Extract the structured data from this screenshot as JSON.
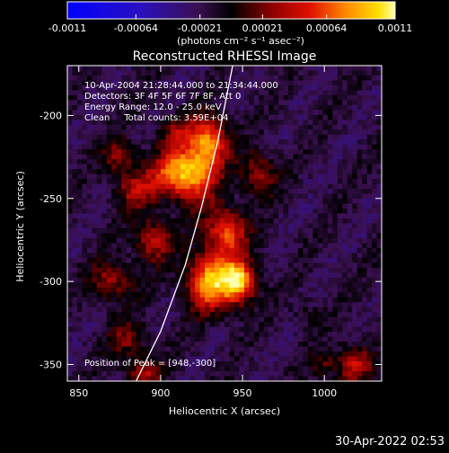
{
  "chart_data": {
    "type": "heatmap",
    "title": "Reconstructed RHESSI Image",
    "xlabel": "Heliocentric X (arcsec)",
    "ylabel": "Heliocentric Y (arcsec)",
    "x_range": [
      843,
      1035
    ],
    "y_range": [
      -360,
      -170
    ],
    "x_ticks": [
      850,
      900,
      950,
      1000
    ],
    "y_ticks": [
      -200,
      -250,
      -300,
      -350
    ],
    "colorbar": {
      "ticks": [
        "-0.0011",
        "-0.00064",
        "-0.00021",
        "0.00021",
        "0.00064",
        "0.0011"
      ],
      "tick_values": [
        -0.0011,
        -0.00064,
        -0.00021,
        0.00021,
        0.00064,
        0.0011
      ],
      "range": [
        -0.0011,
        0.0011
      ],
      "unit_label": "(photons cm⁻² s⁻¹ asec⁻²)"
    },
    "info_lines": [
      "10-Apr-2004 21:28:44.000 to 21:34:44.000",
      "Detectors: 3F 4F 5F 6F 7F 8F, Att 0",
      "Energy Range: 12.0 - 25.0 keV",
      "Clean     Total counts: 3.59E+04"
    ],
    "peak_label": "Position of Peak = [948,-300]",
    "peak": [
      948,
      -300
    ],
    "limb_points": [
      [
        885,
        -360
      ],
      [
        900,
        -330
      ],
      [
        915,
        -290
      ],
      [
        925,
        -255
      ],
      [
        935,
        -215
      ],
      [
        944,
        -170
      ]
    ],
    "sources": [
      {
        "x": 930,
        "y": -300,
        "amp": 0.00105,
        "sx": 10,
        "sy": 12
      },
      {
        "x": 948,
        "y": -300,
        "amp": 0.0011,
        "sx": 7,
        "sy": 9
      },
      {
        "x": 940,
        "y": -270,
        "amp": 0.0008,
        "sx": 9,
        "sy": 10
      },
      {
        "x": 920,
        "y": -235,
        "amp": 0.00095,
        "sx": 10,
        "sy": 12
      },
      {
        "x": 930,
        "y": -215,
        "amp": 0.0009,
        "sx": 8,
        "sy": 10
      },
      {
        "x": 905,
        "y": -235,
        "amp": 0.0006,
        "sx": 9,
        "sy": 9
      },
      {
        "x": 885,
        "y": -245,
        "amp": 0.0005,
        "sx": 9,
        "sy": 8
      },
      {
        "x": 895,
        "y": -275,
        "amp": 0.0006,
        "sx": 8,
        "sy": 9
      },
      {
        "x": 960,
        "y": -235,
        "amp": 0.0005,
        "sx": 8,
        "sy": 9
      },
      {
        "x": 875,
        "y": -225,
        "amp": 0.00045,
        "sx": 7,
        "sy": 8
      },
      {
        "x": 870,
        "y": -300,
        "amp": 0.0005,
        "sx": 9,
        "sy": 8
      },
      {
        "x": 880,
        "y": -335,
        "amp": 0.0004,
        "sx": 8,
        "sy": 8
      },
      {
        "x": 890,
        "y": -355,
        "amp": 0.0005,
        "sx": 8,
        "sy": 6
      },
      {
        "x": 910,
        "y": -210,
        "amp": 0.0004,
        "sx": 8,
        "sy": 7
      },
      {
        "x": 1018,
        "y": -350,
        "amp": 0.0006,
        "sx": 7,
        "sy": 8
      },
      {
        "x": 990,
        "y": -320,
        "amp": 0.0002,
        "sx": 6,
        "sy": 6
      },
      {
        "x": 1000,
        "y": -350,
        "amp": 0.0003,
        "sx": 6,
        "sy": 6
      }
    ]
  },
  "footer": {
    "timestamp": "30-Apr-2022 02:53"
  }
}
